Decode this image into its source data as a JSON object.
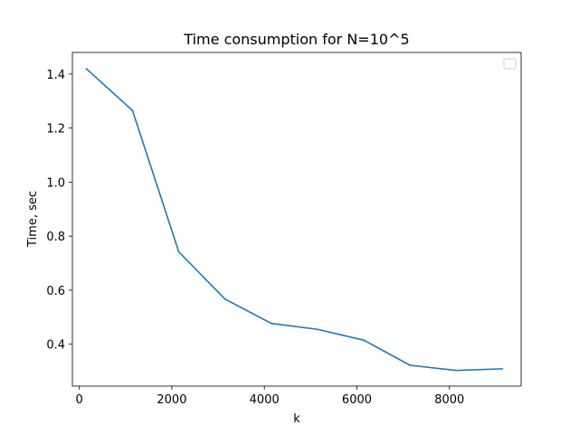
{
  "chart_data": {
    "type": "line",
    "title": "Time consumption for N=10^5",
    "xlabel": "k",
    "ylabel": "Time, sec",
    "xlim": [
      -150,
      9550
    ],
    "ylim": [
      0.245,
      1.48
    ],
    "xticks": [
      0,
      2000,
      4000,
      6000,
      8000
    ],
    "xtick_labels": [
      "0",
      "2000",
      "4000",
      "6000",
      "8000"
    ],
    "yticks": [
      0.4,
      0.6,
      0.8,
      1.0,
      1.2,
      1.4
    ],
    "ytick_labels": [
      "0.4",
      "0.6",
      "0.8",
      "1.0",
      "1.2",
      "1.4"
    ],
    "grid": false,
    "legend": {
      "placement": "top-right",
      "entries": []
    },
    "series": [
      {
        "color": "#1f77b4",
        "x": [
          150,
          1150,
          2150,
          3150,
          4150,
          5150,
          6150,
          7150,
          8150,
          9150
        ],
        "y": [
          1.42,
          1.265,
          0.742,
          0.567,
          0.477,
          0.455,
          0.415,
          0.322,
          0.303,
          0.309
        ]
      }
    ]
  }
}
